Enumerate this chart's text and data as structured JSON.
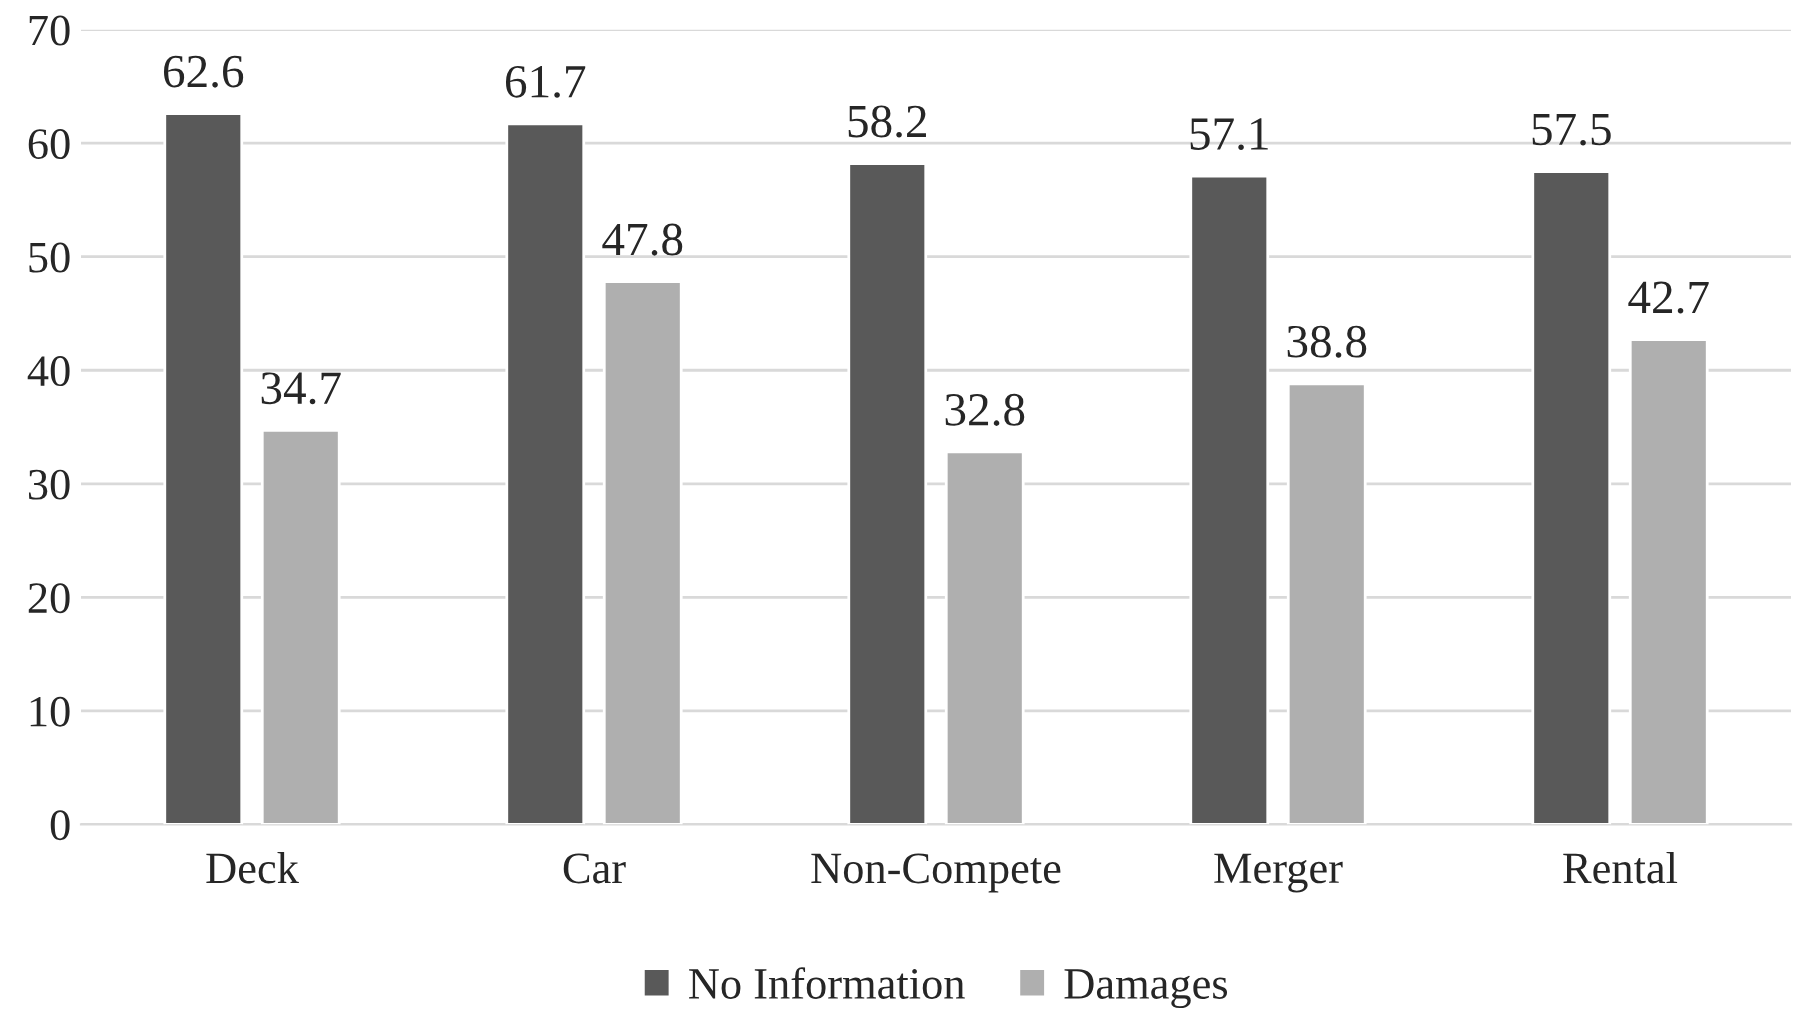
{
  "chart_data": {
    "type": "bar",
    "categories": [
      "Deck",
      "Car",
      "Non-Compete",
      "Merger",
      "Rental"
    ],
    "series": [
      {
        "name": "No Information",
        "color": "#595959",
        "values": [
          62.6,
          61.7,
          58.2,
          57.1,
          57.5
        ]
      },
      {
        "name": "Damages",
        "color": "#afafaf",
        "values": [
          34.7,
          47.8,
          32.8,
          38.8,
          42.7
        ]
      }
    ],
    "ylim": [
      0,
      70
    ],
    "yticks": [
      0,
      10,
      20,
      30,
      40,
      50,
      60,
      70
    ],
    "grid": "y",
    "legend": "bottom",
    "data_labels": true
  }
}
